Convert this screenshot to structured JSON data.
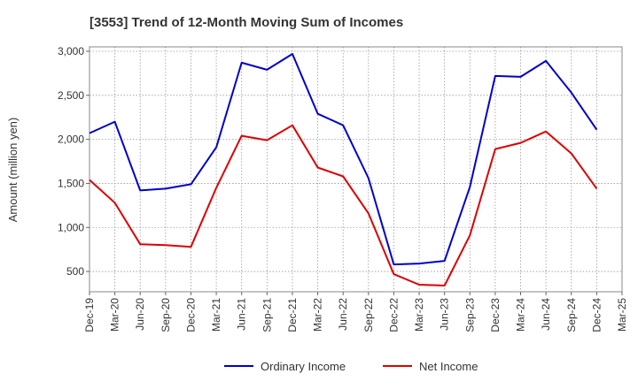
{
  "chart_data": {
    "type": "line",
    "title": "[3553]  Trend of 12-Month Moving Sum of Incomes",
    "xlabel": "",
    "ylabel": "Amount (million yen)",
    "ylim": [
      270,
      3050
    ],
    "yticks": [
      500,
      1000,
      1500,
      2000,
      2500,
      3000
    ],
    "ytick_labels": [
      "500",
      "1,000",
      "1,500",
      "2,000",
      "2,500",
      "3,000"
    ],
    "grid": true,
    "legend_position": "bottom-center",
    "categories": [
      "Dec-19",
      "Mar-20",
      "Jun-20",
      "Sep-20",
      "Dec-20",
      "Mar-21",
      "Jun-21",
      "Sep-21",
      "Dec-21",
      "Mar-22",
      "Jun-22",
      "Sep-22",
      "Dec-22",
      "Mar-23",
      "Jun-23",
      "Sep-23",
      "Dec-23",
      "Mar-24",
      "Jun-24",
      "Sep-24",
      "Dec-24",
      "Mar-25"
    ],
    "series": [
      {
        "name": "Ordinary Income",
        "color": "#0000cc",
        "values": [
          2070,
          2200,
          1420,
          1440,
          1490,
          1910,
          2870,
          2790,
          2970,
          2290,
          2160,
          1560,
          580,
          590,
          620,
          1460,
          2720,
          2710,
          2890,
          2530,
          2110,
          null
        ]
      },
      {
        "name": "Net Income",
        "color": "#dd0000",
        "values": [
          1540,
          1280,
          810,
          800,
          780,
          1450,
          2040,
          1990,
          2160,
          1680,
          1580,
          1160,
          470,
          350,
          340,
          910,
          1890,
          1960,
          2090,
          1840,
          1440,
          null
        ]
      }
    ]
  }
}
